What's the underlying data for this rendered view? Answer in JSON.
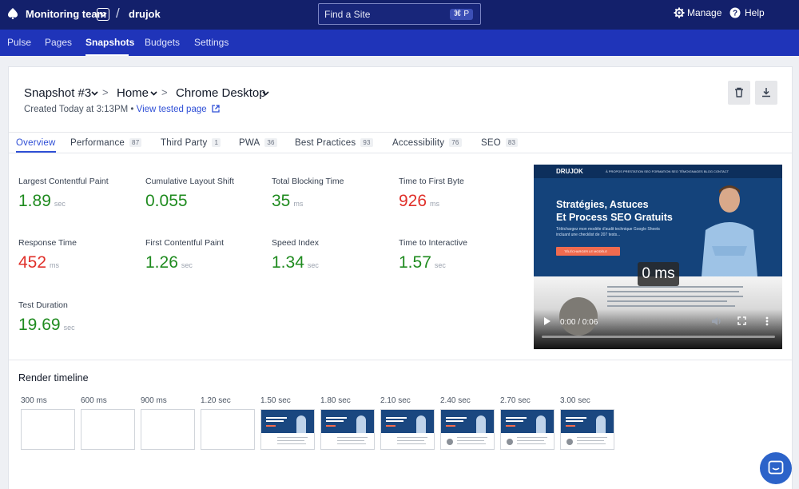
{
  "topbar": {
    "team": "Monitoring team",
    "project": "drujok",
    "search_placeholder": "Find a Site",
    "search_shortcut": "⌘ P",
    "manage": "Manage",
    "help": "Help"
  },
  "nav": {
    "items": [
      "Pulse",
      "Pages",
      "Snapshots",
      "Budgets",
      "Settings"
    ],
    "active": "Snapshots"
  },
  "header": {
    "breadcrumb": [
      "Snapshot #3",
      "Home",
      "Chrome Desktop"
    ],
    "created": "Created Today at 3:13PM •",
    "view_link": "View tested page"
  },
  "tabs": [
    {
      "label": "Overview",
      "badge": ""
    },
    {
      "label": "Performance",
      "badge": "87"
    },
    {
      "label": "Third Party",
      "badge": "1"
    },
    {
      "label": "PWA",
      "badge": "36"
    },
    {
      "label": "Best Practices",
      "badge": "93"
    },
    {
      "label": "Accessibility",
      "badge": "76"
    },
    {
      "label": "SEO",
      "badge": "83"
    }
  ],
  "metrics": [
    {
      "label": "Largest Contentful Paint",
      "value": "1.89",
      "unit": "sec",
      "status": "good"
    },
    {
      "label": "Cumulative Layout Shift",
      "value": "0.055",
      "unit": "",
      "status": "good"
    },
    {
      "label": "Total Blocking Time",
      "value": "35",
      "unit": "ms",
      "status": "good"
    },
    {
      "label": "Time to First Byte",
      "value": "926",
      "unit": "ms",
      "status": "bad"
    },
    {
      "label": "Response Time",
      "value": "452",
      "unit": "ms",
      "status": "bad"
    },
    {
      "label": "First Contentful Paint",
      "value": "1.26",
      "unit": "sec",
      "status": "good"
    },
    {
      "label": "Speed Index",
      "value": "1.34",
      "unit": "sec",
      "status": "good"
    },
    {
      "label": "Time to Interactive",
      "value": "1.57",
      "unit": "sec",
      "status": "good"
    },
    {
      "label": "Test Duration",
      "value": "19.69",
      "unit": "sec",
      "status": "good"
    }
  ],
  "video": {
    "site_logo": "DRUJOK",
    "site_nav": "À PROPOS   PRESTATION SEO   FORMATION SEO   TÉMOIGNAGES   BLOG   CONTACT",
    "headline_1": "Stratégies, Astuces",
    "headline_2": "Et Process SEO Gratuits",
    "sub": "Téléchargez mon modèle d'audit technique Google Sheets incluant une checklist de 207 tests...",
    "cta": "TÉLÉCHARGER LE MODÈLE",
    "timer": "0 ms",
    "time": "0:00 / 0:06"
  },
  "render_timeline": {
    "title": "Render timeline",
    "frames": [
      {
        "label": "300 ms",
        "filled": false
      },
      {
        "label": "600 ms",
        "filled": false
      },
      {
        "label": "900 ms",
        "filled": false
      },
      {
        "label": "1.20 sec",
        "filled": false
      },
      {
        "label": "1.50 sec",
        "filled": true
      },
      {
        "label": "1.80 sec",
        "filled": true
      },
      {
        "label": "2.10 sec",
        "filled": true
      },
      {
        "label": "2.40 sec",
        "filled": true
      },
      {
        "label": "2.70 sec",
        "filled": true
      },
      {
        "label": "3.00 sec",
        "filled": true
      }
    ]
  },
  "colors": {
    "topbar": "#13206b",
    "subnav": "#1f34b9",
    "good": "#1f8b1f",
    "bad": "#e0302a",
    "link": "#2f4fd6"
  }
}
